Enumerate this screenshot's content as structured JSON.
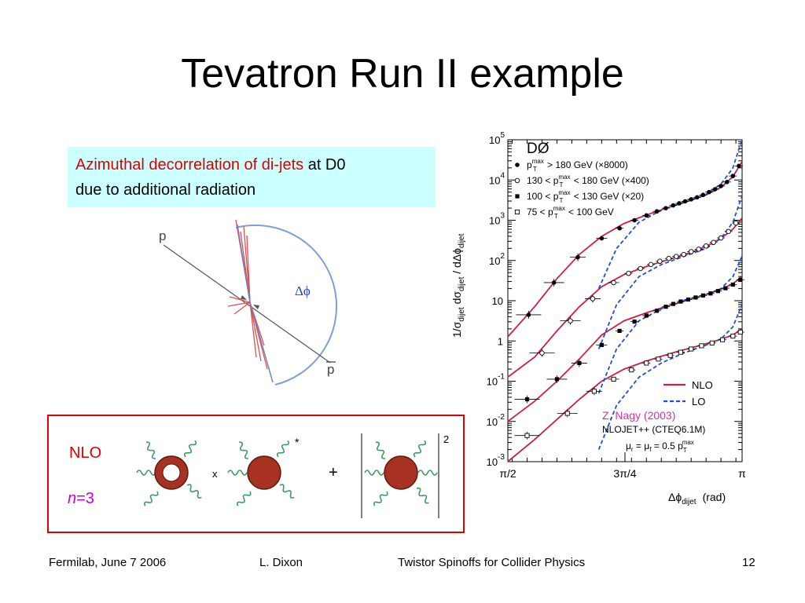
{
  "slide": {
    "title": "Tevatron Run II example",
    "callout": {
      "highlight": "Azimuthal decorrelation of di-jets",
      "rest1": " at D0",
      "line2": "due to additional radiation"
    },
    "diagram": {
      "p_label": "p",
      "pbar_label": "p",
      "delta_phi": "Δϕ"
    },
    "nlo_box": {
      "nlo": "NLO",
      "n_var": "n",
      "n_eq": "=3",
      "times": "x",
      "star": "*",
      "plus": "+",
      "squared": "2"
    },
    "footer": {
      "left": "Fermilab, June 7 2006",
      "author": "L. Dixon",
      "talk": "Twistor Spinoffs for Collider Physics",
      "page": "12"
    },
    "colors": {
      "red": "#e00000",
      "cyan_box": "#ccffff",
      "nlo_curve": "#cc1f4a",
      "lo_curve": "#1f4fd6",
      "blob": "#a83222"
    }
  },
  "chart_data": {
    "type": "scatter",
    "experiment_label": "DØ",
    "ylabel_parts": [
      "1/σ",
      "dijet",
      " dσ",
      "dijet",
      " / dΔϕ",
      "dijet"
    ],
    "xlabel_parts": [
      "Δϕ",
      "dijet",
      "(rad)"
    ],
    "x_ticks": [
      "π/2",
      "3π/4",
      "π"
    ],
    "y_ticks": [
      {
        "base": "10",
        "exp": "5"
      },
      {
        "base": "10",
        "exp": "4"
      },
      {
        "base": "10",
        "exp": "3"
      },
      {
        "base": "10",
        "exp": "2"
      },
      {
        "base": "10",
        "exp": ""
      },
      {
        "base": "1",
        "exp": ""
      },
      {
        "base": "10",
        "exp": "-1"
      },
      {
        "base": "10",
        "exp": "-2"
      },
      {
        "base": "10",
        "exp": "-3"
      }
    ],
    "xlim": [
      1.5708,
      3.1416
    ],
    "ylim_log10": [
      -3,
      5
    ],
    "legend_series": [
      {
        "pre": "p",
        "sup": "max",
        "sub": "T",
        "post": " > 180 GeV  (×8000)",
        "marker": "filled-circle"
      },
      {
        "pre": "130 < p",
        "sup": "max",
        "sub": "T",
        "post": " < 180 GeV  (×400)",
        "marker": "open-circle"
      },
      {
        "pre": "100 < p",
        "sup": "max",
        "sub": "T",
        "post": " < 130 GeV  (×20)",
        "marker": "filled-square"
      },
      {
        "pre": "  75 < p",
        "sup": "max",
        "sub": "T",
        "post": " < 100 GeV",
        "marker": "open-square"
      }
    ],
    "curve_legend": [
      {
        "label": "NLO",
        "style": "solid"
      },
      {
        "label": "LO",
        "style": "dashed"
      }
    ],
    "annotations": {
      "author": "Z. Nagy (2003)",
      "program": "NLOJET++   (CTEQ6.1M)",
      "scale_text": "μ",
      "scale_sub1": "r",
      "scale_eq": " = μ",
      "scale_sub2": "f",
      "scale_rest": " = 0.5 p",
      "scale_sup": "max",
      "scale_sub3": "T"
    },
    "series": [
      {
        "marker": "filled-circle",
        "x": [
          1.71,
          1.88,
          2.04,
          2.2,
          2.32,
          2.42,
          2.5,
          2.57,
          2.63,
          2.68,
          2.72,
          2.76,
          2.8,
          2.84,
          2.88,
          2.92,
          2.96,
          3.0,
          3.04,
          3.08,
          3.12
        ],
        "log10y": [
          0.65,
          1.45,
          2.08,
          2.55,
          2.8,
          3.0,
          3.12,
          3.22,
          3.3,
          3.37,
          3.42,
          3.47,
          3.52,
          3.57,
          3.63,
          3.7,
          3.77,
          3.85,
          3.95,
          4.1,
          4.35
        ]
      },
      {
        "marker": "open-circle",
        "x": [
          1.8,
          1.99,
          2.14,
          2.28,
          2.38,
          2.46,
          2.53,
          2.59,
          2.65,
          2.7,
          2.75,
          2.8,
          2.85,
          2.9,
          2.95,
          3.0,
          3.05,
          3.1
        ],
        "log10y": [
          -0.3,
          0.5,
          1.05,
          1.45,
          1.68,
          1.8,
          1.9,
          1.98,
          2.05,
          2.1,
          2.15,
          2.22,
          2.28,
          2.36,
          2.45,
          2.56,
          2.72,
          2.93
        ]
      },
      {
        "marker": "filled-square",
        "x": [
          1.7,
          1.9,
          2.05,
          2.2,
          2.32,
          2.42,
          2.5,
          2.57,
          2.63,
          2.68,
          2.73,
          2.78,
          2.83,
          2.88,
          2.93,
          2.98,
          3.03,
          3.08,
          3.13
        ],
        "log10y": [
          -1.45,
          -0.95,
          -0.55,
          -0.1,
          0.25,
          0.48,
          0.63,
          0.75,
          0.85,
          0.92,
          0.98,
          1.03,
          1.08,
          1.13,
          1.18,
          1.24,
          1.31,
          1.4,
          1.52
        ]
      },
      {
        "marker": "open-square",
        "x": [
          1.7,
          1.97,
          2.15,
          2.28,
          2.4,
          2.5,
          2.58,
          2.66,
          2.73,
          2.8,
          2.87,
          2.94,
          3.01,
          3.08,
          3.13
        ],
        "log10y": [
          -2.35,
          -1.8,
          -1.25,
          -0.95,
          -0.72,
          -0.55,
          -0.45,
          -0.36,
          -0.28,
          -0.2,
          -0.12,
          -0.05,
          0.03,
          0.12,
          0.22
        ]
      }
    ],
    "nlo_curves": [
      {
        "x": [
          1.57,
          1.75,
          1.9,
          2.05,
          2.2,
          2.35,
          2.5,
          2.6,
          2.7,
          2.8,
          2.9,
          3.0,
          3.08,
          3.14
        ],
        "log10y": [
          0.1,
          0.85,
          1.55,
          2.15,
          2.6,
          2.92,
          3.13,
          3.26,
          3.38,
          3.5,
          3.63,
          3.82,
          4.08,
          4.45
        ]
      },
      {
        "x": [
          1.57,
          1.75,
          1.9,
          2.05,
          2.2,
          2.35,
          2.5,
          2.6,
          2.7,
          2.8,
          2.9,
          3.0,
          3.08,
          3.14
        ],
        "log10y": [
          -0.9,
          -0.4,
          0.25,
          0.85,
          1.35,
          1.65,
          1.85,
          1.97,
          2.08,
          2.2,
          2.35,
          2.55,
          2.78,
          3.05
        ]
      },
      {
        "x": [
          1.57,
          1.75,
          1.9,
          2.05,
          2.2,
          2.35,
          2.5,
          2.6,
          2.7,
          2.8,
          2.9,
          3.0,
          3.08,
          3.14
        ],
        "log10y": [
          -2.0,
          -1.5,
          -1.0,
          -0.45,
          0.15,
          0.5,
          0.7,
          0.82,
          0.93,
          1.04,
          1.15,
          1.28,
          1.42,
          1.6
        ]
      },
      {
        "x": [
          1.57,
          1.75,
          1.9,
          2.05,
          2.2,
          2.35,
          2.5,
          2.6,
          2.7,
          2.8,
          2.9,
          3.0,
          3.08,
          3.14
        ],
        "log10y": [
          -3.0,
          -2.45,
          -1.95,
          -1.45,
          -1.0,
          -0.7,
          -0.5,
          -0.38,
          -0.27,
          -0.17,
          -0.07,
          0.04,
          0.15,
          0.3
        ]
      }
    ],
    "lo_curves": [
      {
        "x": [
          2.18,
          2.3,
          2.45,
          2.6,
          2.75,
          2.9,
          3.0,
          3.08,
          3.14
        ],
        "log10y": [
          1.3,
          2.3,
          2.95,
          3.25,
          3.45,
          3.65,
          3.9,
          4.3,
          5.0
        ]
      },
      {
        "x": [
          2.18,
          2.3,
          2.45,
          2.6,
          2.75,
          2.9,
          3.0,
          3.08,
          3.14
        ],
        "log10y": [
          -0.2,
          0.9,
          1.6,
          1.9,
          2.1,
          2.3,
          2.55,
          2.95,
          3.6
        ]
      },
      {
        "x": [
          2.18,
          2.3,
          2.45,
          2.6,
          2.75,
          2.9,
          3.0,
          3.08,
          3.14
        ],
        "log10y": [
          -1.3,
          -0.2,
          0.5,
          0.8,
          1.0,
          1.15,
          1.3,
          1.6,
          2.1
        ]
      },
      {
        "x": [
          2.18,
          2.3,
          2.45,
          2.6,
          2.75,
          2.9,
          3.0,
          3.08,
          3.14
        ],
        "log10y": [
          -2.7,
          -1.6,
          -0.9,
          -0.55,
          -0.3,
          -0.1,
          0.05,
          0.35,
          0.9
        ]
      }
    ]
  }
}
